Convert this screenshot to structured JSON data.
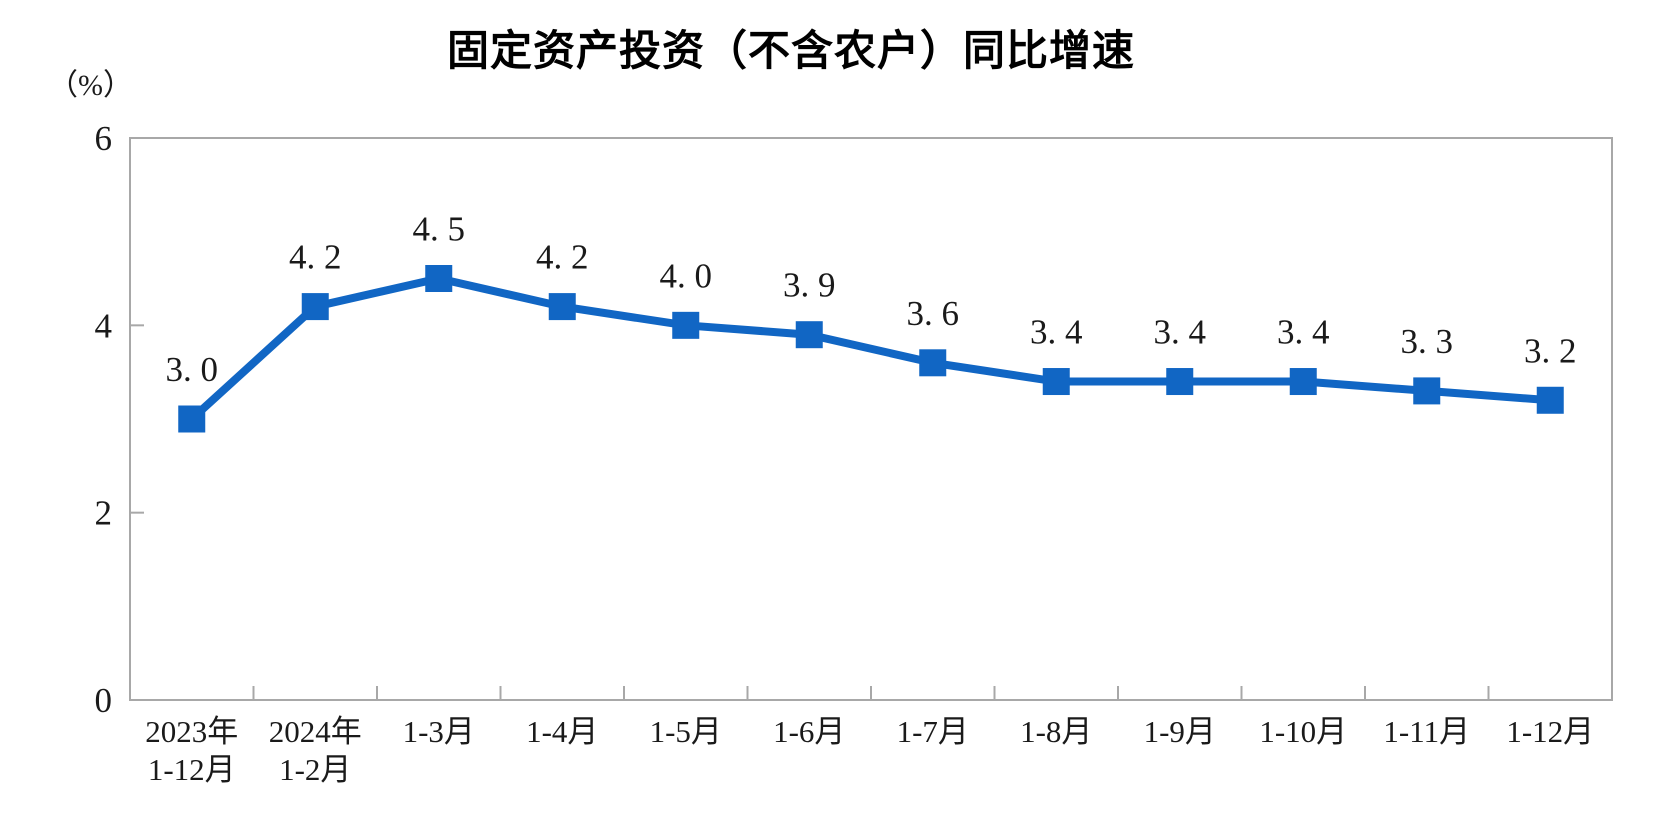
{
  "page": {
    "background_color": "#FFFFFF"
  },
  "header": {
    "title": "固定资产投资（不含农户）同比增速",
    "unit_label": "（%）"
  },
  "chart_data": {
    "type": "line",
    "title": "固定资产投资（不含农户）同比增速",
    "xlabel": "",
    "ylabel": "（%）",
    "categories": [
      [
        "2023年",
        "1-12月"
      ],
      [
        "2024年",
        "1-2月"
      ],
      [
        "1-3月"
      ],
      [
        "1-4月"
      ],
      [
        "1-5月"
      ],
      [
        "1-6月"
      ],
      [
        "1-7月"
      ],
      [
        "1-8月"
      ],
      [
        "1-9月"
      ],
      [
        "1-10月"
      ],
      [
        "1-11月"
      ],
      [
        "1-12月"
      ]
    ],
    "series": [
      {
        "name": "固定资产投资（不含农户）同比增速",
        "values": [
          3.0,
          4.2,
          4.5,
          4.2,
          4.0,
          3.9,
          3.6,
          3.4,
          3.4,
          3.4,
          3.3,
          3.2
        ],
        "point_labels": [
          "3. 0",
          "4. 2",
          "4. 5",
          "4. 2",
          "4. 0",
          "3. 9",
          "3. 6",
          "3. 4",
          "3. 4",
          "3. 4",
          "3. 3",
          "3. 2"
        ]
      }
    ],
    "ylim": [
      0,
      6
    ],
    "yticks": [
      0,
      2,
      4,
      6
    ],
    "grid": false,
    "legend": false,
    "marker": "square",
    "colors": {
      "line": "#1166C4",
      "marker": "#1166C4",
      "axis": "#A8A8A8",
      "text": "#1A1A1A",
      "title": "#000000"
    }
  }
}
